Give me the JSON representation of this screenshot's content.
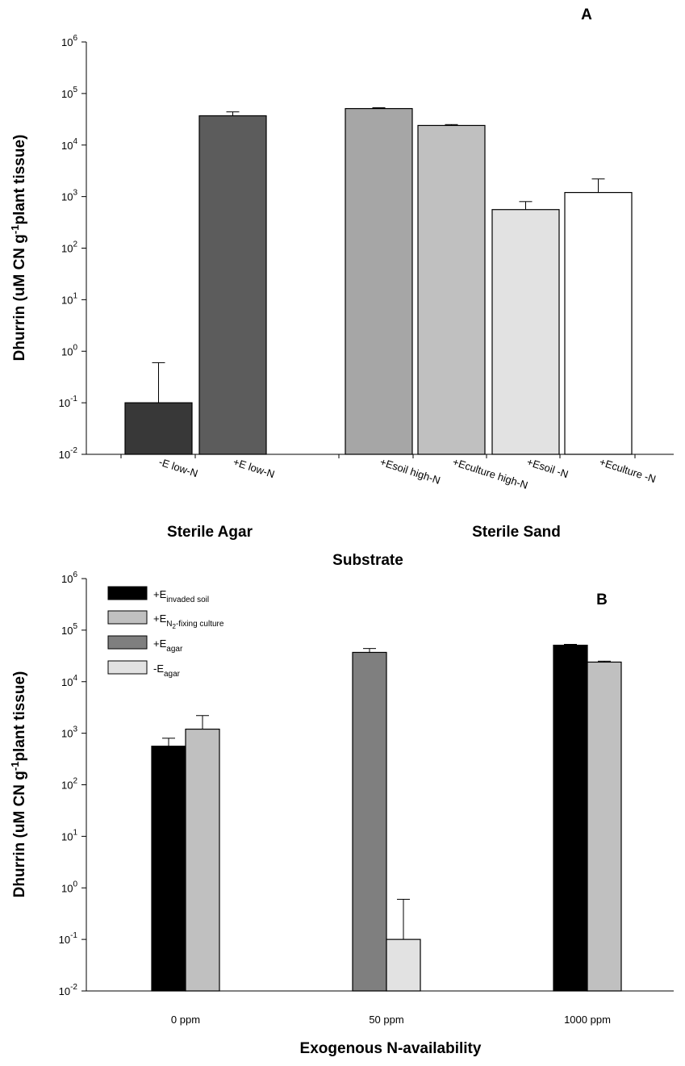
{
  "chart_data": [
    {
      "panel_label": "A",
      "type": "bar",
      "y_scale": "log",
      "ylim": [
        0.01,
        1000000
      ],
      "ylabel_parts": [
        "Dhurrin (uM CN g",
        "-1",
        "plant tissue)"
      ],
      "xlabel": "Substrate",
      "y_ticks": [
        {
          "value": 0.01,
          "base": "10",
          "exp": "-2"
        },
        {
          "value": 0.1,
          "base": "10",
          "exp": "-1"
        },
        {
          "value": 1,
          "base": "10",
          "exp": "0"
        },
        {
          "value": 10,
          "base": "10",
          "exp": "1"
        },
        {
          "value": 100,
          "base": "10",
          "exp": "2"
        },
        {
          "value": 1000,
          "base": "10",
          "exp": "3"
        },
        {
          "value": 10000,
          "base": "10",
          "exp": "4"
        },
        {
          "value": 100000,
          "base": "10",
          "exp": "5"
        },
        {
          "value": 1000000,
          "base": "10",
          "exp": "6"
        }
      ],
      "groups": [
        "Sterile Agar",
        "Sterile Sand"
      ],
      "bars": [
        {
          "label": "-E low-N",
          "value": 0.1,
          "err_top": 0.6,
          "color": "#383838",
          "group": 0
        },
        {
          "label": "+E low-N",
          "value": 37000,
          "err_top": 44000,
          "color": "#5c5c5c",
          "group": 0
        },
        {
          "label": "+Esoil high-N",
          "value": 51000,
          "err_top": 53000,
          "color": "#a6a6a6",
          "group": 1
        },
        {
          "label": "+Eculture  high-N",
          "value": 24000,
          "err_top": 25000,
          "color": "#c0c0c0",
          "group": 1
        },
        {
          "label": "+Esoil -N",
          "value": 560,
          "err_top": 800,
          "color": "#e2e2e2",
          "group": 1
        },
        {
          "label": "+Eculture -N",
          "value": 1200,
          "err_top": 2200,
          "color": "#ffffff",
          "group": 1
        }
      ]
    },
    {
      "panel_label": "B",
      "type": "bar",
      "y_scale": "log",
      "ylim": [
        0.01,
        1000000
      ],
      "ylabel_parts": [
        "Dhurrin (uM CN g",
        "-1",
        "plant tissue)"
      ],
      "xlabel": "Exogenous N-availability",
      "categories": [
        "0 ppm",
        "50 ppm",
        "1000 ppm"
      ],
      "y_ticks": [
        {
          "value": 0.01,
          "base": "10",
          "exp": "-2"
        },
        {
          "value": 0.1,
          "base": "10",
          "exp": "-1"
        },
        {
          "value": 1,
          "base": "10",
          "exp": "0"
        },
        {
          "value": 10,
          "base": "10",
          "exp": "1"
        },
        {
          "value": 100,
          "base": "10",
          "exp": "2"
        },
        {
          "value": 1000,
          "base": "10",
          "exp": "3"
        },
        {
          "value": 10000,
          "base": "10",
          "exp": "4"
        },
        {
          "value": 100000,
          "base": "10",
          "exp": "5"
        },
        {
          "value": 1000000,
          "base": "10",
          "exp": "6"
        }
      ],
      "series": [
        {
          "name_main": "+E",
          "name_sub": "invaded soil",
          "name_subsub": "",
          "name_tail": "",
          "color": "#000000"
        },
        {
          "name_main": "+E",
          "name_sub": "N",
          "name_subsub": "2",
          "name_tail": "-fixing culture",
          "color": "#c0c0c0"
        },
        {
          "name_main": "+E",
          "name_sub": "agar",
          "name_subsub": "",
          "name_tail": "",
          "color": "#7f7f7f"
        },
        {
          "name_main": " -E",
          "name_sub": "agar",
          "name_subsub": "",
          "name_tail": "",
          "color": "#e2e2e2"
        }
      ],
      "bars": [
        {
          "category": 0,
          "series": 0,
          "value": 560,
          "err_top": 800
        },
        {
          "category": 0,
          "series": 1,
          "value": 1200,
          "err_top": 2200
        },
        {
          "category": 1,
          "series": 2,
          "value": 37000,
          "err_top": 44000
        },
        {
          "category": 1,
          "series": 3,
          "value": 0.1,
          "err_top": 0.6
        },
        {
          "category": 2,
          "series": 0,
          "value": 51000,
          "err_top": 53000
        },
        {
          "category": 2,
          "series": 1,
          "value": 24000,
          "err_top": 25000
        }
      ]
    }
  ]
}
